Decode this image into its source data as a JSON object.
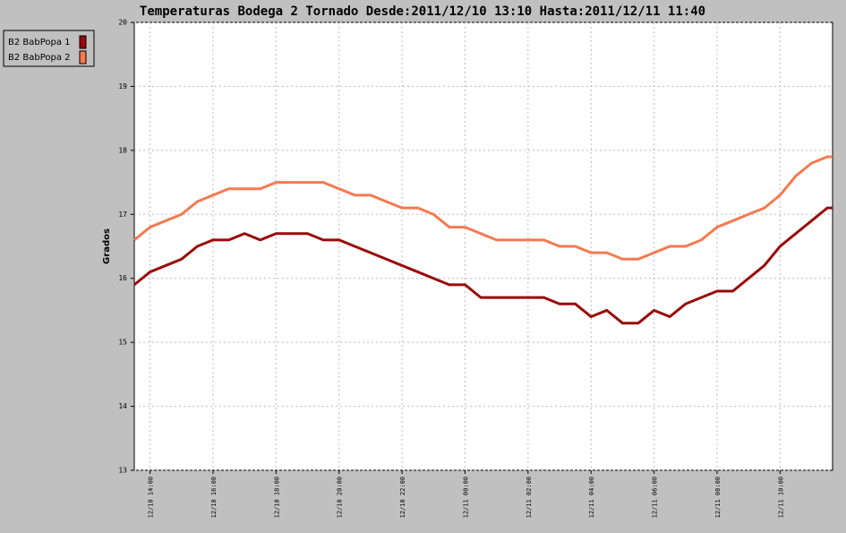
{
  "chart_data": {
    "type": "line",
    "title": "Temperaturas Bodega 2 Tornado Desde:2011/12/10 13:10 Hasta:2011/12/11 11:40",
    "y_label": "Grados",
    "x": [
      810,
      840,
      870,
      900,
      930,
      960,
      990,
      1020,
      1050,
      1080,
      1110,
      1140,
      1170,
      1200,
      1230,
      1260,
      1290,
      1320,
      1350,
      1380,
      1410,
      1440,
      1470,
      1500,
      1530,
      1560,
      1590,
      1620,
      1650,
      1680,
      1710,
      1740,
      1770,
      1800,
      1830,
      1860,
      1890,
      1920,
      1950,
      1980,
      2010,
      2040,
      2070,
      2100,
      2130,
      2140
    ],
    "series": [
      {
        "name": "B2 BabPopa 1",
        "color": "#990b0b",
        "values": [
          15.9,
          16.1,
          16.2,
          16.3,
          16.5,
          16.6,
          16.6,
          16.7,
          16.6,
          16.7,
          16.7,
          16.7,
          16.6,
          16.6,
          16.5,
          16.4,
          16.3,
          16.2,
          16.1,
          16.0,
          15.9,
          15.9,
          15.7,
          15.7,
          15.7,
          15.7,
          15.7,
          15.6,
          15.6,
          15.4,
          15.5,
          15.3,
          15.3,
          15.5,
          15.4,
          15.6,
          15.7,
          15.8,
          15.8,
          16.0,
          16.2,
          16.5,
          16.7,
          16.9,
          17.1,
          17.1
        ]
      },
      {
        "name": "B2 BabPopa 2",
        "color": "#f47a50",
        "values": [
          16.6,
          16.8,
          16.9,
          17.0,
          17.2,
          17.3,
          17.4,
          17.4,
          17.4,
          17.5,
          17.5,
          17.5,
          17.5,
          17.4,
          17.3,
          17.3,
          17.2,
          17.1,
          17.1,
          17.0,
          16.8,
          16.8,
          16.7,
          16.6,
          16.6,
          16.6,
          16.6,
          16.5,
          16.5,
          16.4,
          16.4,
          16.3,
          16.3,
          16.4,
          16.5,
          16.5,
          16.6,
          16.8,
          16.9,
          17.0,
          17.1,
          17.3,
          17.6,
          17.8,
          17.9,
          17.9
        ]
      }
    ],
    "xlim": [
      810,
      2140
    ],
    "xticks": [
      {
        "value": 840,
        "label": "12/10 14:00"
      },
      {
        "value": 960,
        "label": "12/10 16:00"
      },
      {
        "value": 1080,
        "label": "12/10 18:00"
      },
      {
        "value": 1200,
        "label": "12/10 20:00"
      },
      {
        "value": 1320,
        "label": "12/10 22:00"
      },
      {
        "value": 1440,
        "label": "12/11 00:00"
      },
      {
        "value": 1560,
        "label": "12/11 02:00"
      },
      {
        "value": 1680,
        "label": "12/11 04:00"
      },
      {
        "value": 1800,
        "label": "12/11 06:00"
      },
      {
        "value": 1920,
        "label": "12/11 08:00"
      },
      {
        "value": 2040,
        "label": "12/11 10:00"
      }
    ],
    "ylim": [
      13,
      20
    ],
    "yticks": [
      13,
      14,
      15,
      16,
      17,
      18,
      19,
      20
    ],
    "grid": true,
    "legend": "top-left"
  }
}
